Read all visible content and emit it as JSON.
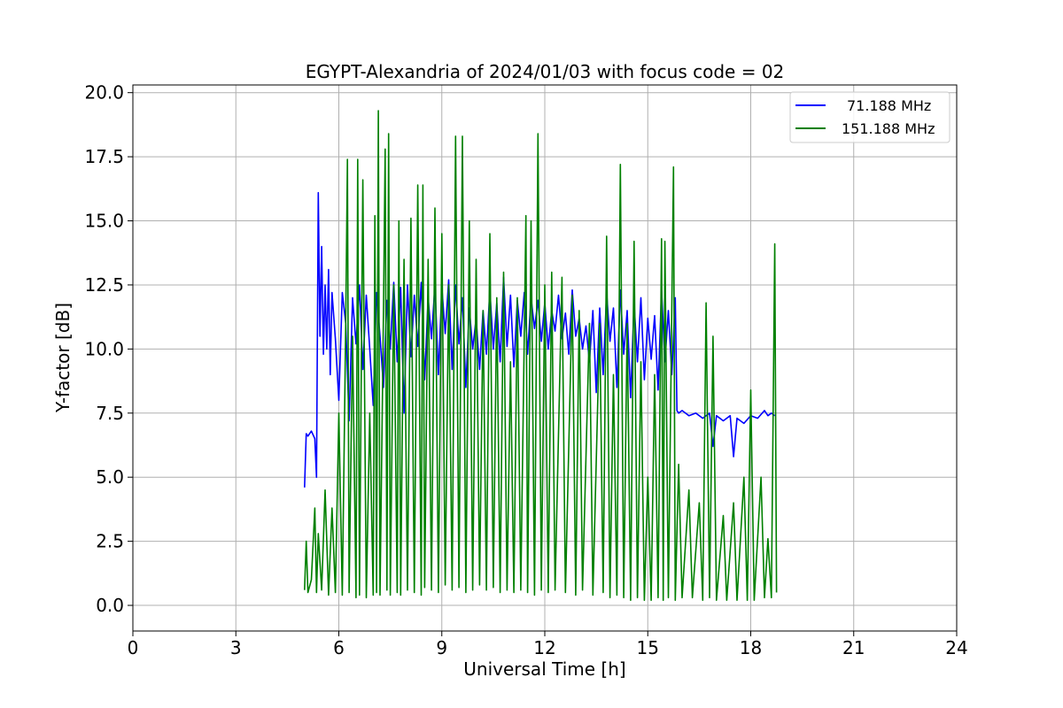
{
  "chart_data": {
    "type": "line",
    "title": "EGYPT-Alexandria of 2024/01/03 with focus code = 02",
    "xlabel": "Universal Time [h]",
    "ylabel": "Y-factor [dB]",
    "xlim": [
      0,
      24
    ],
    "ylim": [
      -1.0,
      20.3
    ],
    "xticks": [
      0,
      3,
      6,
      9,
      12,
      15,
      18,
      21,
      24
    ],
    "xtick_labels": [
      "0",
      "3",
      "6",
      "9",
      "12",
      "15",
      "18",
      "21",
      "24"
    ],
    "yticks": [
      0.0,
      2.5,
      5.0,
      7.5,
      10.0,
      12.5,
      15.0,
      17.5,
      20.0
    ],
    "ytick_labels": [
      "0.0",
      "2.5",
      "5.0",
      "7.5",
      "10.0",
      "12.5",
      "15.0",
      "17.5",
      "20.0"
    ],
    "grid": true,
    "legend_position": "top-right",
    "series": [
      {
        "name": "71.188 MHz",
        "color": "#0000ff",
        "points": [
          [
            5.0,
            4.6
          ],
          [
            5.05,
            6.7
          ],
          [
            5.1,
            6.6
          ],
          [
            5.2,
            6.8
          ],
          [
            5.3,
            6.5
          ],
          [
            5.35,
            5.0
          ],
          [
            5.4,
            16.1
          ],
          [
            5.45,
            10.5
          ],
          [
            5.5,
            14.0
          ],
          [
            5.55,
            9.8
          ],
          [
            5.6,
            12.5
          ],
          [
            5.65,
            10.0
          ],
          [
            5.7,
            13.1
          ],
          [
            5.75,
            9.0
          ],
          [
            5.8,
            12.2
          ],
          [
            5.9,
            10.4
          ],
          [
            6.0,
            8.0
          ],
          [
            6.1,
            12.2
          ],
          [
            6.2,
            11.0
          ],
          [
            6.3,
            7.2
          ],
          [
            6.4,
            12.0
          ],
          [
            6.5,
            10.2
          ],
          [
            6.6,
            12.5
          ],
          [
            6.7,
            9.2
          ],
          [
            6.8,
            12.1
          ],
          [
            6.9,
            10.0
          ],
          [
            7.0,
            7.8
          ],
          [
            7.1,
            12.2
          ],
          [
            7.2,
            10.5
          ],
          [
            7.3,
            8.5
          ],
          [
            7.4,
            11.9
          ],
          [
            7.5,
            10.0
          ],
          [
            7.6,
            12.6
          ],
          [
            7.7,
            9.5
          ],
          [
            7.8,
            12.4
          ],
          [
            7.9,
            7.5
          ],
          [
            8.0,
            12.5
          ],
          [
            8.1,
            9.7
          ],
          [
            8.2,
            12.1
          ],
          [
            8.3,
            10.1
          ],
          [
            8.4,
            12.6
          ],
          [
            8.5,
            8.8
          ],
          [
            8.6,
            12.0
          ],
          [
            8.7,
            10.4
          ],
          [
            8.8,
            12.5
          ],
          [
            8.9,
            9.0
          ],
          [
            9.0,
            12.4
          ],
          [
            9.1,
            10.6
          ],
          [
            9.2,
            12.7
          ],
          [
            9.3,
            9.2
          ],
          [
            9.4,
            12.5
          ],
          [
            9.5,
            10.2
          ],
          [
            9.6,
            12.0
          ],
          [
            9.7,
            8.5
          ],
          [
            9.8,
            11.6
          ],
          [
            9.9,
            10.0
          ],
          [
            10.0,
            11.2
          ],
          [
            10.1,
            9.2
          ],
          [
            10.2,
            11.5
          ],
          [
            10.3,
            9.8
          ],
          [
            10.4,
            12.3
          ],
          [
            10.5,
            10.0
          ],
          [
            10.6,
            11.8
          ],
          [
            10.7,
            9.5
          ],
          [
            10.8,
            12.8
          ],
          [
            10.9,
            10.1
          ],
          [
            11.0,
            12.1
          ],
          [
            11.1,
            9.3
          ],
          [
            11.2,
            11.9
          ],
          [
            11.3,
            10.5
          ],
          [
            11.4,
            12.2
          ],
          [
            11.5,
            9.8
          ],
          [
            11.6,
            12.0
          ],
          [
            11.7,
            10.8
          ],
          [
            11.8,
            11.9
          ],
          [
            11.9,
            10.3
          ],
          [
            12.0,
            11.8
          ],
          [
            12.1,
            10.0
          ],
          [
            12.2,
            11.5
          ],
          [
            12.3,
            10.7
          ],
          [
            12.4,
            12.1
          ],
          [
            12.5,
            10.4
          ],
          [
            12.6,
            11.4
          ],
          [
            12.7,
            9.8
          ],
          [
            12.8,
            12.3
          ],
          [
            12.9,
            10.5
          ],
          [
            13.0,
            11.2
          ],
          [
            13.1,
            10.0
          ],
          [
            13.2,
            10.9
          ],
          [
            13.3,
            9.5
          ],
          [
            13.4,
            11.5
          ],
          [
            13.5,
            8.3
          ],
          [
            13.6,
            11.6
          ],
          [
            13.7,
            9.0
          ],
          [
            13.8,
            12.2
          ],
          [
            13.9,
            10.3
          ],
          [
            14.0,
            11.6
          ],
          [
            14.1,
            8.5
          ],
          [
            14.2,
            12.3
          ],
          [
            14.3,
            9.8
          ],
          [
            14.4,
            11.5
          ],
          [
            14.5,
            8.1
          ],
          [
            14.6,
            11.8
          ],
          [
            14.7,
            9.5
          ],
          [
            14.8,
            12.0
          ],
          [
            14.9,
            8.8
          ],
          [
            15.0,
            11.2
          ],
          [
            15.1,
            9.6
          ],
          [
            15.2,
            11.3
          ],
          [
            15.3,
            8.4
          ],
          [
            15.4,
            12.3
          ],
          [
            15.5,
            9.5
          ],
          [
            15.6,
            11.5
          ],
          [
            15.7,
            9.0
          ],
          [
            15.8,
            12.0
          ],
          [
            15.85,
            7.6
          ],
          [
            15.9,
            7.5
          ],
          [
            16.0,
            7.6
          ],
          [
            16.2,
            7.4
          ],
          [
            16.4,
            7.5
          ],
          [
            16.6,
            7.3
          ],
          [
            16.8,
            7.5
          ],
          [
            16.9,
            6.2
          ],
          [
            17.0,
            7.4
          ],
          [
            17.2,
            7.2
          ],
          [
            17.4,
            7.4
          ],
          [
            17.5,
            5.8
          ],
          [
            17.6,
            7.3
          ],
          [
            17.8,
            7.1
          ],
          [
            18.0,
            7.4
          ],
          [
            18.2,
            7.3
          ],
          [
            18.4,
            7.6
          ],
          [
            18.5,
            7.4
          ],
          [
            18.6,
            7.5
          ],
          [
            18.7,
            7.4
          ]
        ]
      },
      {
        "name": "151.188 MHz",
        "color": "#008000",
        "points": [
          [
            5.0,
            0.6
          ],
          [
            5.05,
            2.5
          ],
          [
            5.1,
            0.5
          ],
          [
            5.2,
            1.0
          ],
          [
            5.3,
            3.8
          ],
          [
            5.35,
            0.5
          ],
          [
            5.4,
            2.8
          ],
          [
            5.5,
            0.6
          ],
          [
            5.6,
            4.5
          ],
          [
            5.7,
            0.4
          ],
          [
            5.8,
            3.8
          ],
          [
            5.9,
            0.5
          ],
          [
            6.0,
            7.5
          ],
          [
            6.1,
            0.4
          ],
          [
            6.2,
            11.0
          ],
          [
            6.25,
            17.4
          ],
          [
            6.3,
            0.5
          ],
          [
            6.4,
            10.5
          ],
          [
            6.5,
            0.3
          ],
          [
            6.55,
            17.4
          ],
          [
            6.6,
            0.4
          ],
          [
            6.7,
            16.6
          ],
          [
            6.8,
            0.3
          ],
          [
            6.9,
            7.5
          ],
          [
            7.0,
            0.4
          ],
          [
            7.05,
            15.2
          ],
          [
            7.1,
            0.5
          ],
          [
            7.15,
            19.3
          ],
          [
            7.2,
            0.4
          ],
          [
            7.3,
            11.5
          ],
          [
            7.35,
            17.8
          ],
          [
            7.4,
            0.6
          ],
          [
            7.45,
            18.4
          ],
          [
            7.5,
            0.4
          ],
          [
            7.6,
            12.5
          ],
          [
            7.7,
            0.5
          ],
          [
            7.75,
            15.0
          ],
          [
            7.8,
            0.4
          ],
          [
            7.9,
            13.5
          ],
          [
            8.0,
            0.6
          ],
          [
            8.1,
            15.1
          ],
          [
            8.2,
            0.5
          ],
          [
            8.3,
            16.4
          ],
          [
            8.4,
            0.4
          ],
          [
            8.45,
            16.4
          ],
          [
            8.5,
            0.7
          ],
          [
            8.6,
            13.5
          ],
          [
            8.7,
            0.6
          ],
          [
            8.8,
            15.5
          ],
          [
            8.9,
            0.5
          ],
          [
            9.0,
            14.5
          ],
          [
            9.1,
            0.8
          ],
          [
            9.2,
            12.5
          ],
          [
            9.3,
            0.6
          ],
          [
            9.4,
            18.3
          ],
          [
            9.5,
            0.7
          ],
          [
            9.6,
            18.3
          ],
          [
            9.7,
            0.5
          ],
          [
            9.8,
            15.0
          ],
          [
            9.9,
            0.6
          ],
          [
            10.0,
            13.5
          ],
          [
            10.1,
            0.8
          ],
          [
            10.2,
            11.5
          ],
          [
            10.3,
            0.6
          ],
          [
            10.4,
            14.5
          ],
          [
            10.5,
            0.7
          ],
          [
            10.6,
            12.0
          ],
          [
            10.7,
            0.5
          ],
          [
            10.8,
            13.0
          ],
          [
            10.9,
            0.6
          ],
          [
            11.0,
            9.5
          ],
          [
            11.1,
            0.5
          ],
          [
            11.2,
            12.0
          ],
          [
            11.3,
            0.6
          ],
          [
            11.45,
            15.2
          ],
          [
            11.5,
            0.5
          ],
          [
            11.6,
            15.0
          ],
          [
            11.7,
            0.4
          ],
          [
            11.8,
            18.4
          ],
          [
            11.9,
            0.6
          ],
          [
            12.0,
            12.5
          ],
          [
            12.1,
            0.5
          ],
          [
            12.2,
            13.0
          ],
          [
            12.3,
            0.6
          ],
          [
            12.5,
            12.8
          ],
          [
            12.6,
            0.5
          ],
          [
            12.8,
            12.1
          ],
          [
            12.9,
            0.4
          ],
          [
            13.0,
            11.5
          ],
          [
            13.1,
            0.6
          ],
          [
            13.3,
            11.0
          ],
          [
            13.4,
            0.4
          ],
          [
            13.6,
            11.0
          ],
          [
            13.7,
            0.5
          ],
          [
            13.8,
            14.4
          ],
          [
            13.9,
            0.3
          ],
          [
            14.0,
            9.0
          ],
          [
            14.1,
            0.4
          ],
          [
            14.2,
            17.2
          ],
          [
            14.3,
            0.3
          ],
          [
            14.4,
            11.0
          ],
          [
            14.5,
            0.2
          ],
          [
            14.6,
            14.2
          ],
          [
            14.7,
            0.3
          ],
          [
            14.8,
            9.5
          ],
          [
            14.9,
            0.2
          ],
          [
            15.0,
            5.0
          ],
          [
            15.1,
            0.2
          ],
          [
            15.2,
            9.0
          ],
          [
            15.3,
            0.3
          ],
          [
            15.4,
            14.3
          ],
          [
            15.45,
            0.2
          ],
          [
            15.5,
            14.2
          ],
          [
            15.6,
            0.3
          ],
          [
            15.75,
            17.1
          ],
          [
            15.8,
            0.2
          ],
          [
            15.9,
            5.5
          ],
          [
            16.0,
            0.3
          ],
          [
            16.2,
            4.5
          ],
          [
            16.3,
            0.3
          ],
          [
            16.5,
            4.0
          ],
          [
            16.6,
            0.2
          ],
          [
            16.7,
            11.8
          ],
          [
            16.8,
            0.3
          ],
          [
            16.9,
            10.5
          ],
          [
            17.0,
            0.2
          ],
          [
            17.2,
            3.5
          ],
          [
            17.3,
            0.2
          ],
          [
            17.5,
            4.0
          ],
          [
            17.6,
            0.2
          ],
          [
            17.8,
            5.0
          ],
          [
            17.9,
            0.2
          ],
          [
            18.0,
            8.4
          ],
          [
            18.1,
            0.2
          ],
          [
            18.3,
            5.0
          ],
          [
            18.4,
            0.3
          ],
          [
            18.5,
            2.6
          ],
          [
            18.6,
            0.3
          ],
          [
            18.7,
            14.1
          ],
          [
            18.75,
            0.5
          ]
        ]
      }
    ]
  }
}
